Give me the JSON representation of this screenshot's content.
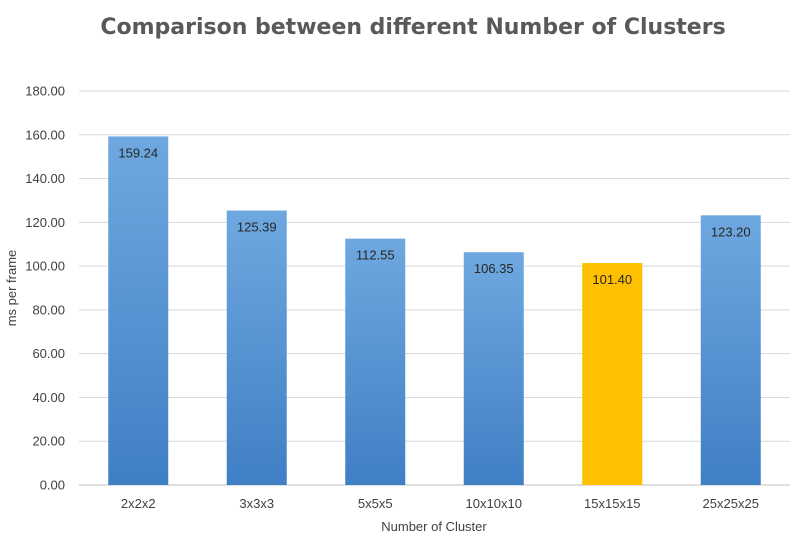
{
  "chart_data": {
    "type": "bar",
    "title": "Comparison between different Number of Clusters",
    "xlabel": "Number of Cluster",
    "ylabel": "ms per frame",
    "categories": [
      "2x2x2",
      "3x3x3",
      "5x5x5",
      "10x10x10",
      "15x15x15",
      "25x25x25"
    ],
    "values": [
      159.24,
      125.39,
      112.55,
      106.35,
      101.4,
      123.2
    ],
    "data_labels": [
      "159.24",
      "125.39",
      "112.55",
      "106.35",
      "101.40",
      "123.20"
    ],
    "highlight_index": 4,
    "y_ticks": [
      "0.00",
      "20.00",
      "40.00",
      "60.00",
      "80.00",
      "100.00",
      "120.00",
      "140.00",
      "160.00",
      "180.00"
    ],
    "ylim": [
      0,
      180
    ],
    "grid": true,
    "legend": "none",
    "colors": {
      "bar_top": "#6fa8e0",
      "bar_bottom": "#3f7fc4",
      "highlight": "#ffc000"
    }
  }
}
